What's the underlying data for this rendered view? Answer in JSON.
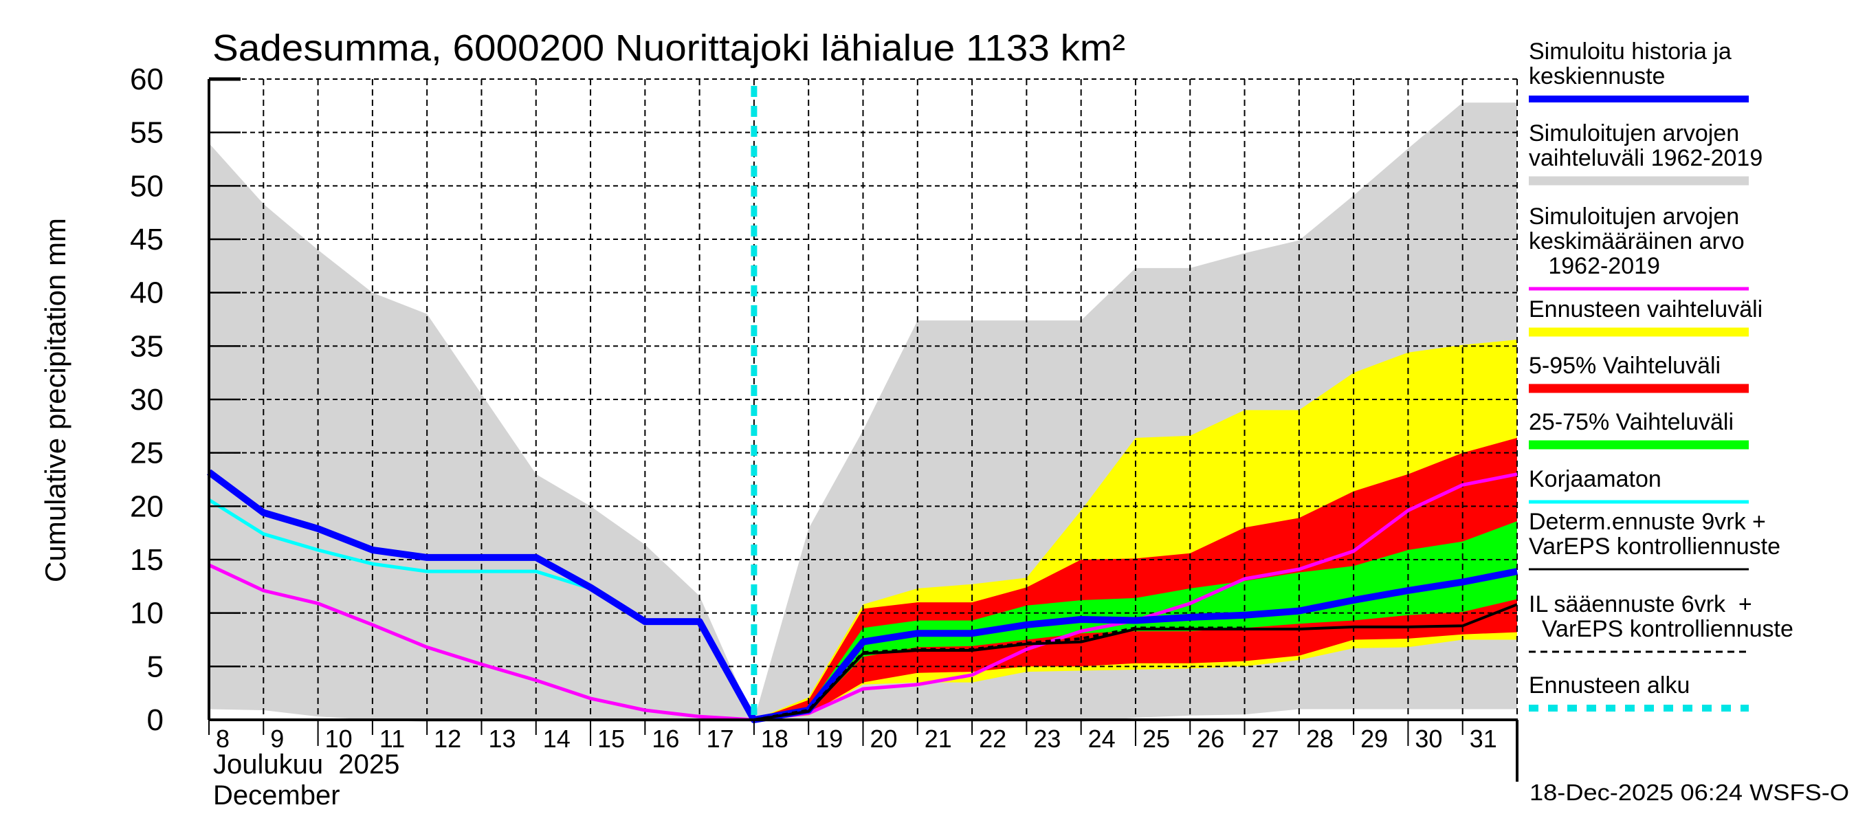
{
  "chart_data": {
    "type": "area",
    "title": "Sadesumma, 6000200 Nuorittajoki lähialue 1133 km²",
    "ylabel": "Cumulative precipitation   mm",
    "xlabel_line1": "Joulukuu  2025",
    "xlabel_line2": "December",
    "timestamp": "18-Dec-2025 06:24 WSFS-O",
    "ylim": [
      0,
      60
    ],
    "yticks": [
      0,
      5,
      10,
      15,
      20,
      25,
      30,
      35,
      40,
      45,
      50,
      55,
      60
    ],
    "xlim": [
      8,
      32
    ],
    "xticks": [
      8,
      9,
      10,
      11,
      12,
      13,
      14,
      15,
      16,
      17,
      18,
      19,
      20,
      21,
      22,
      23,
      24,
      25,
      26,
      27,
      28,
      29,
      30,
      31
    ],
    "forecast_start_day": 18,
    "grid": true,
    "legend_position": "right",
    "colors": {
      "history": "#0000ff",
      "climate_range": "#d4d4d4",
      "climate_mean": "#ff00ff",
      "forecast_range": "#ffff00",
      "p5_95": "#ff0000",
      "p25_75": "#00ff00",
      "uncorrected": "#00ffff",
      "determ": "#000000",
      "il": "#000000",
      "forecast_start": "#00e5e5"
    },
    "legend": [
      {
        "key": "history",
        "label": [
          "Simuloitu historia ja",
          "keskiennuste"
        ],
        "style": "thick-line"
      },
      {
        "key": "climate_range",
        "label": [
          "Simuloitujen arvojen",
          "vaihteluväli 1962-2019"
        ],
        "style": "band"
      },
      {
        "key": "climate_mean",
        "label": [
          "Simuloitujen arvojen",
          "keskimääräinen arvo",
          "   1962-2019"
        ],
        "style": "line"
      },
      {
        "key": "forecast_range",
        "label": [
          "Ennusteen vaihteluväli"
        ],
        "style": "band"
      },
      {
        "key": "p5_95",
        "label": [
          "5-95% Vaihteluväli"
        ],
        "style": "band"
      },
      {
        "key": "p25_75",
        "label": [
          "25-75% Vaihteluväli"
        ],
        "style": "band"
      },
      {
        "key": "uncorrected",
        "label": [
          "Korjaamaton"
        ],
        "style": "line"
      },
      {
        "key": "determ",
        "label": [
          "Determ.ennuste 9vrk +",
          "VarEPS kontrolliennuste"
        ],
        "style": "line"
      },
      {
        "key": "il",
        "label": [
          "IL sääennuste 6vrk  +",
          "  VarEPS kontrolliennuste"
        ],
        "style": "dashed"
      },
      {
        "key": "forecast_start",
        "label": [
          "Ennusteen alku"
        ],
        "style": "dotted"
      }
    ],
    "series": {
      "climate_range": {
        "x": [
          8,
          9,
          10,
          11,
          12,
          13,
          14,
          15,
          16,
          17,
          18,
          19,
          20,
          21,
          22,
          23,
          24,
          25,
          26,
          27,
          28,
          29,
          30,
          31,
          32
        ],
        "max": [
          54,
          48.3,
          44,
          40,
          38,
          30.5,
          23,
          20,
          16.4,
          11.6,
          0,
          17.9,
          27.1,
          37.4,
          37.4,
          37.4,
          37.4,
          42.3,
          42.3,
          43.7,
          44.9,
          49.1,
          53.5,
          57.8,
          57.8
        ],
        "min": [
          1,
          0.9,
          0.3,
          0,
          -0.2,
          -0.2,
          -0.2,
          -0.2,
          -0.2,
          -0.2,
          -0.2,
          -0.2,
          -0.2,
          -0.2,
          -0.2,
          -0.2,
          -0.2,
          0.2,
          0.4,
          0.5,
          1,
          1,
          1,
          1,
          1
        ]
      },
      "forecast_range": {
        "x": [
          18,
          19,
          20,
          21,
          22,
          23,
          24,
          25,
          26,
          27,
          28,
          29,
          30,
          31,
          32
        ],
        "max": [
          0,
          2.1,
          10.8,
          12.3,
          12.7,
          13.3,
          19.6,
          26.4,
          26.6,
          29.0,
          29.0,
          32.5,
          34.4,
          35.1,
          35.6
        ],
        "min": [
          0,
          0.4,
          3.3,
          3.5,
          3.5,
          4.5,
          4.6,
          4.7,
          4.8,
          5.0,
          5.6,
          6.7,
          6.8,
          7.5,
          7.5
        ]
      },
      "p5_95": {
        "x": [
          18,
          19,
          20,
          21,
          22,
          23,
          24,
          25,
          26,
          27,
          28,
          29,
          30,
          31,
          32
        ],
        "max": [
          0,
          1.85,
          10.4,
          11.0,
          11.0,
          12.4,
          15.0,
          15.1,
          15.6,
          18.0,
          18.9,
          21.4,
          23.0,
          25.0,
          26.4
        ],
        "min": [
          0,
          0.5,
          3.5,
          4.4,
          4.5,
          5.0,
          5.0,
          5.3,
          5.3,
          5.5,
          6.0,
          7.5,
          7.6,
          8.0,
          8.2
        ]
      },
      "p25_75": {
        "x": [
          18,
          19,
          20,
          21,
          22,
          23,
          24,
          25,
          26,
          27,
          28,
          29,
          30,
          31,
          32
        ],
        "max": [
          0,
          1.2,
          8.6,
          9.3,
          9.3,
          10.7,
          11.2,
          11.4,
          12.3,
          13.0,
          13.8,
          14.4,
          15.9,
          16.7,
          18.6
        ],
        "min": [
          0,
          0.7,
          5.9,
          6.8,
          6.9,
          7.5,
          8.1,
          8.3,
          8.3,
          8.6,
          9.0,
          9.3,
          9.8,
          10.1,
          11.3
        ]
      },
      "history": {
        "x": [
          8,
          9,
          10,
          11,
          12,
          13,
          14,
          15,
          16,
          17,
          18,
          19,
          20,
          21,
          22,
          23,
          24,
          25,
          26,
          27,
          28,
          29,
          30,
          31,
          32
        ],
        "y": [
          23.2,
          19.4,
          17.9,
          15.9,
          15.2,
          15.2,
          15.2,
          12.4,
          9.2,
          9.2,
          0,
          0.9,
          7.3,
          8.1,
          8.1,
          8.9,
          9.4,
          9.3,
          9.6,
          9.8,
          10.2,
          11.2,
          12.1,
          12.9,
          13.9
        ]
      },
      "uncorrected": {
        "x": [
          8,
          9,
          10,
          11,
          12,
          13,
          14,
          15,
          16,
          17,
          18
        ],
        "y": [
          20.6,
          17.4,
          15.9,
          14.6,
          13.9,
          13.9,
          13.9,
          12.3,
          9.1,
          9.1,
          0
        ]
      },
      "climate_mean": {
        "x": [
          8,
          9,
          10,
          11,
          12,
          13,
          14,
          15,
          16,
          17,
          18,
          19,
          20,
          21,
          22,
          23,
          24,
          25,
          26,
          27,
          28,
          29,
          30,
          31,
          32
        ],
        "y": [
          14.5,
          12.1,
          10.9,
          8.9,
          6.8,
          5.2,
          3.7,
          2.0,
          0.9,
          0.3,
          0,
          0.6,
          2.9,
          3.3,
          4.2,
          6.6,
          8.3,
          9.3,
          10.9,
          13.2,
          14.1,
          15.8,
          19.6,
          22.0,
          23.0
        ]
      },
      "determ": {
        "x": [
          18,
          19,
          20,
          21,
          22,
          23,
          24,
          25,
          26,
          27,
          28,
          29,
          30,
          31,
          32
        ],
        "y": [
          0,
          0.8,
          6.2,
          6.5,
          6.5,
          7.1,
          7.3,
          8.5,
          8.5,
          8.5,
          8.5,
          8.7,
          8.7,
          8.8,
          10.8
        ]
      },
      "il": {
        "x": [
          18,
          19,
          20,
          21,
          22,
          23,
          24,
          25,
          26,
          27
        ],
        "y": [
          0,
          0.9,
          6.3,
          6.6,
          6.6,
          7.2,
          7.6,
          8.6,
          8.6,
          8.6
        ]
      }
    }
  }
}
